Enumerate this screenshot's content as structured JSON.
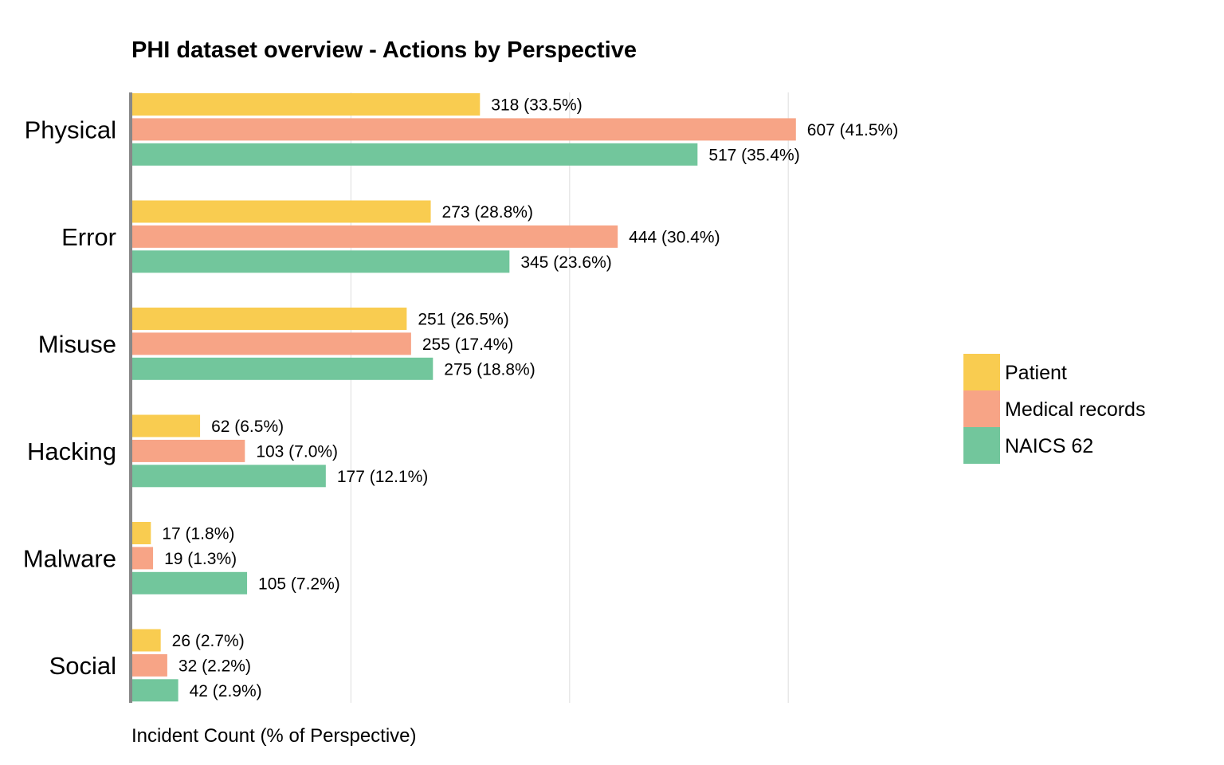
{
  "chart_data": {
    "type": "bar",
    "orientation": "horizontal",
    "title": "PHI dataset overview - Actions by Perspective",
    "xlabel": "Incident Count (% of Perspective)",
    "ylabel": "",
    "categories": [
      "Physical",
      "Error",
      "Misuse",
      "Hacking",
      "Malware",
      "Social"
    ],
    "series": [
      {
        "name": "Patient",
        "color": "#f9cc50",
        "values": [
          318,
          273,
          251,
          62,
          17,
          26
        ],
        "labels": [
          "318 (33.5%)",
          "273 (28.8%)",
          "251 (26.5%)",
          "62 (6.5%)",
          "17 (1.8%)",
          "26 (2.7%)"
        ]
      },
      {
        "name": "Medical records",
        "color": "#f7a486",
        "values": [
          607,
          444,
          255,
          103,
          19,
          32
        ],
        "labels": [
          "607 (41.5%)",
          "444 (30.4%)",
          "255 (17.4%)",
          "103 (7.0%)",
          "19 (1.3%)",
          "32 (2.2%)"
        ]
      },
      {
        "name": "NAICS 62",
        "color": "#72c69c",
        "values": [
          517,
          345,
          275,
          177,
          105,
          42
        ],
        "labels": [
          "517 (35.4%)",
          "345 (23.6%)",
          "275 (18.8%)",
          "177 (12.1%)",
          "105 (7.2%)",
          "42 (2.9%)"
        ]
      }
    ],
    "xlim": [
      0,
      800
    ],
    "gridlines": [
      200,
      400,
      600
    ],
    "grid": true,
    "legend_position": "right"
  }
}
